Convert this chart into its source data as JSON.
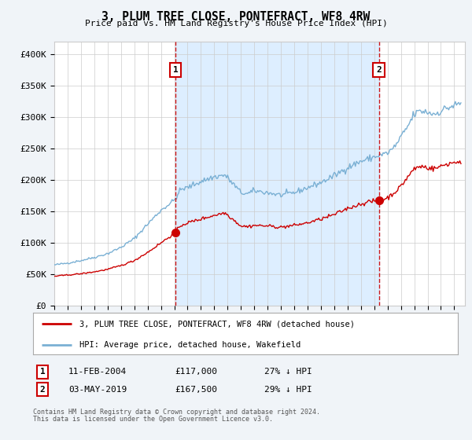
{
  "title": "3, PLUM TREE CLOSE, PONTEFRACT, WF8 4RW",
  "subtitle": "Price paid vs. HM Land Registry's House Price Index (HPI)",
  "ylabel_ticks": [
    "£0",
    "£50K",
    "£100K",
    "£150K",
    "£200K",
    "£250K",
    "£300K",
    "£350K",
    "£400K"
  ],
  "ytick_values": [
    0,
    50000,
    100000,
    150000,
    200000,
    250000,
    300000,
    350000,
    400000
  ],
  "ylim": [
    0,
    420000
  ],
  "xlim_start": 1995.0,
  "xlim_end": 2025.8,
  "sale1_year": 2004.1,
  "sale1_price": 117000,
  "sale1_label": "1",
  "sale1_text": "11-FEB-2004",
  "sale1_amount": "£117,000",
  "sale1_pct": "27% ↓ HPI",
  "sale2_year": 2019.35,
  "sale2_price": 167500,
  "sale2_label": "2",
  "sale2_text": "03-MAY-2019",
  "sale2_amount": "£167,500",
  "sale2_pct": "29% ↓ HPI",
  "legend_property": "3, PLUM TREE CLOSE, PONTEFRACT, WF8 4RW (detached house)",
  "legend_hpi": "HPI: Average price, detached house, Wakefield",
  "footer1": "Contains HM Land Registry data © Crown copyright and database right 2024.",
  "footer2": "This data is licensed under the Open Government Licence v3.0.",
  "property_color": "#cc0000",
  "hpi_color": "#7ab0d4",
  "shade_color": "#ddeeff",
  "background_color": "#f0f4f8",
  "plot_bg_color": "#ffffff",
  "grid_color": "#cccccc"
}
